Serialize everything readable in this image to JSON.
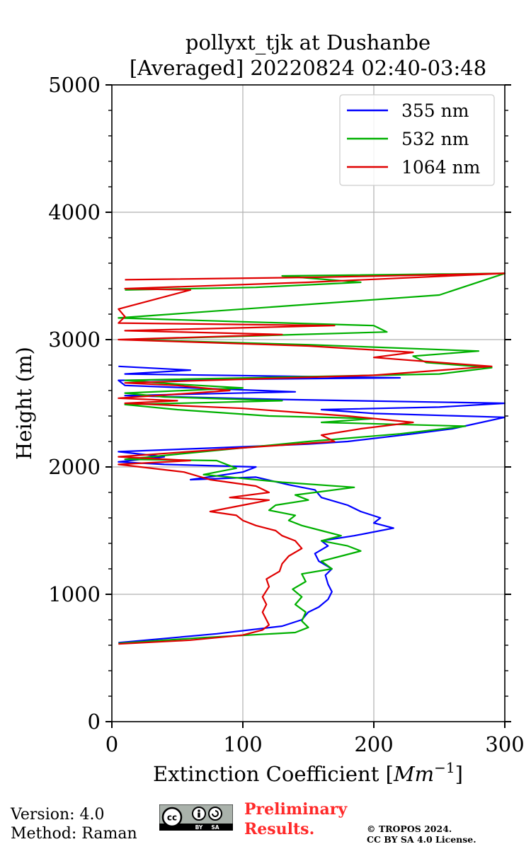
{
  "chart_data": {
    "type": "line",
    "title": "pollyxt_tjk at Dushanbe",
    "subtitle": "[Averaged] 20220824 02:40-03:48",
    "xlabel": "Extinction Coefficient",
    "xlabel_unit": "Mm",
    "xlabel_exp": "−1",
    "ylabel": "Height (m)",
    "xlim": [
      0,
      300
    ],
    "ylim": [
      0,
      5000
    ],
    "xticks": [
      "0",
      "100",
      "200",
      "300"
    ],
    "yticks": [
      "0",
      "1000",
      "2000",
      "3000",
      "4000",
      "5000"
    ],
    "xtick_values": [
      0,
      100,
      200,
      300
    ],
    "ytick_values": [
      0,
      1000,
      2000,
      3000,
      4000,
      5000
    ],
    "grid": true,
    "legend_position": "top-right",
    "series": [
      {
        "name": "355 nm",
        "color": "#0000ff",
        "points": [
          [
            5,
            620
          ],
          [
            80,
            690
          ],
          [
            130,
            750
          ],
          [
            145,
            800
          ],
          [
            150,
            860
          ],
          [
            158,
            900
          ],
          [
            165,
            960
          ],
          [
            168,
            1020
          ],
          [
            165,
            1080
          ],
          [
            163,
            1150
          ],
          [
            168,
            1200
          ],
          [
            158,
            1260
          ],
          [
            155,
            1320
          ],
          [
            165,
            1380
          ],
          [
            160,
            1420
          ],
          [
            185,
            1460
          ],
          [
            215,
            1520
          ],
          [
            200,
            1560
          ],
          [
            205,
            1600
          ],
          [
            190,
            1650
          ],
          [
            180,
            1700
          ],
          [
            160,
            1760
          ],
          [
            155,
            1820
          ],
          [
            135,
            1860
          ],
          [
            110,
            1920
          ],
          [
            60,
            1900
          ],
          [
            100,
            1960
          ],
          [
            110,
            2000
          ],
          [
            40,
            2020
          ],
          [
            5,
            2040
          ],
          [
            40,
            2080
          ],
          [
            5,
            2120
          ],
          [
            80,
            2150
          ],
          [
            150,
            2180
          ],
          [
            180,
            2200
          ],
          [
            230,
            2260
          ],
          [
            260,
            2300
          ],
          [
            300,
            2390
          ],
          [
            200,
            2420
          ],
          [
            160,
            2450
          ],
          [
            250,
            2470
          ],
          [
            300,
            2500
          ],
          [
            130,
            2530
          ],
          [
            10,
            2560
          ],
          [
            140,
            2590
          ],
          [
            10,
            2640
          ],
          [
            5,
            2680
          ],
          [
            220,
            2700
          ],
          [
            10,
            2730
          ],
          [
            60,
            2760
          ],
          [
            5,
            2790
          ]
        ]
      },
      {
        "name": "532 nm",
        "color": "#00b000",
        "points": [
          [
            5,
            615
          ],
          [
            70,
            660
          ],
          [
            140,
            700
          ],
          [
            150,
            740
          ],
          [
            145,
            790
          ],
          [
            148,
            860
          ],
          [
            140,
            920
          ],
          [
            145,
            980
          ],
          [
            138,
            1040
          ],
          [
            148,
            1100
          ],
          [
            145,
            1160
          ],
          [
            168,
            1200
          ],
          [
            160,
            1260
          ],
          [
            175,
            1300
          ],
          [
            190,
            1340
          ],
          [
            180,
            1380
          ],
          [
            160,
            1420
          ],
          [
            175,
            1460
          ],
          [
            160,
            1500
          ],
          [
            145,
            1540
          ],
          [
            135,
            1580
          ],
          [
            140,
            1620
          ],
          [
            120,
            1660
          ],
          [
            125,
            1700
          ],
          [
            150,
            1740
          ],
          [
            140,
            1780
          ],
          [
            185,
            1840
          ],
          [
            130,
            1880
          ],
          [
            70,
            1940
          ],
          [
            95,
            1990
          ],
          [
            80,
            2050
          ],
          [
            10,
            2060
          ],
          [
            50,
            2100
          ],
          [
            100,
            2150
          ],
          [
            150,
            2200
          ],
          [
            220,
            2260
          ],
          [
            270,
            2320
          ],
          [
            160,
            2350
          ],
          [
            200,
            2380
          ],
          [
            120,
            2400
          ],
          [
            50,
            2450
          ],
          [
            10,
            2490
          ],
          [
            130,
            2520
          ],
          [
            40,
            2550
          ],
          [
            10,
            2580
          ],
          [
            100,
            2620
          ],
          [
            50,
            2650
          ],
          [
            10,
            2680
          ],
          [
            250,
            2730
          ],
          [
            290,
            2780
          ],
          [
            240,
            2820
          ],
          [
            230,
            2870
          ],
          [
            280,
            2910
          ],
          [
            150,
            2960
          ],
          [
            10,
            3000
          ],
          [
            210,
            3060
          ],
          [
            200,
            3110
          ],
          [
            100,
            3140
          ],
          [
            5,
            3170
          ],
          [
            250,
            3350
          ],
          [
            300,
            3520
          ],
          [
            130,
            3500
          ],
          [
            190,
            3450
          ],
          [
            110,
            3410
          ],
          [
            10,
            3390
          ]
        ]
      },
      {
        "name": "1064 nm",
        "color": "#e00000",
        "points": [
          [
            5,
            610
          ],
          [
            60,
            640
          ],
          [
            100,
            680
          ],
          [
            115,
            720
          ],
          [
            120,
            760
          ],
          [
            118,
            800
          ],
          [
            115,
            860
          ],
          [
            118,
            920
          ],
          [
            115,
            980
          ],
          [
            120,
            1060
          ],
          [
            118,
            1120
          ],
          [
            128,
            1180
          ],
          [
            130,
            1240
          ],
          [
            135,
            1300
          ],
          [
            145,
            1360
          ],
          [
            140,
            1420
          ],
          [
            130,
            1460
          ],
          [
            125,
            1500
          ],
          [
            110,
            1540
          ],
          [
            100,
            1580
          ],
          [
            95,
            1620
          ],
          [
            75,
            1650
          ],
          [
            100,
            1700
          ],
          [
            120,
            1740
          ],
          [
            90,
            1760
          ],
          [
            120,
            1800
          ],
          [
            110,
            1850
          ],
          [
            75,
            1900
          ],
          [
            55,
            1960
          ],
          [
            5,
            2020
          ],
          [
            60,
            2050
          ],
          [
            5,
            2080
          ],
          [
            100,
            2150
          ],
          [
            170,
            2200
          ],
          [
            160,
            2250
          ],
          [
            190,
            2300
          ],
          [
            230,
            2350
          ],
          [
            180,
            2400
          ],
          [
            100,
            2460
          ],
          [
            10,
            2500
          ],
          [
            50,
            2520
          ],
          [
            5,
            2540
          ],
          [
            90,
            2600
          ],
          [
            50,
            2640
          ],
          [
            10,
            2660
          ],
          [
            200,
            2720
          ],
          [
            290,
            2790
          ],
          [
            250,
            2820
          ],
          [
            200,
            2860
          ],
          [
            230,
            2900
          ],
          [
            150,
            2950
          ],
          [
            5,
            3000
          ],
          [
            130,
            3040
          ],
          [
            10,
            3070
          ],
          [
            170,
            3110
          ],
          [
            5,
            3130
          ],
          [
            10,
            3180
          ],
          [
            5,
            3240
          ],
          [
            60,
            3390
          ],
          [
            10,
            3400
          ],
          [
            150,
            3450
          ],
          [
            300,
            3520
          ],
          [
            160,
            3490
          ],
          [
            10,
            3470
          ]
        ]
      }
    ]
  },
  "footer": {
    "version": "Version: 4.0",
    "method": "Method: Raman",
    "preliminary_1": "Preliminary",
    "preliminary_2": "Results.",
    "copyright_1": "© TROPOS 2024.",
    "copyright_2": "CC BY SA 4.0 License.",
    "cc_badge": [
      "cc",
      "BY",
      "SA"
    ]
  }
}
